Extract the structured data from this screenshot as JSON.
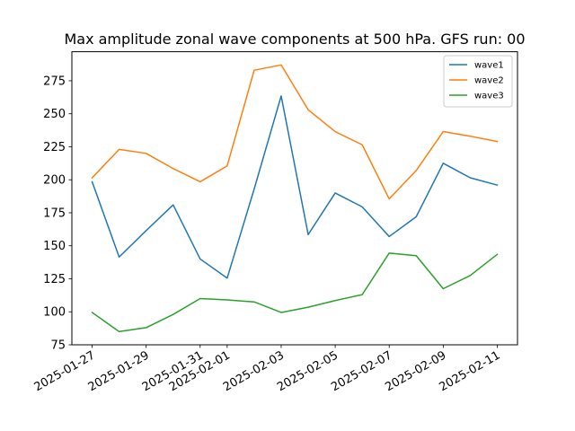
{
  "chart_data": {
    "type": "line",
    "title": "Max amplitude zonal wave components at 500 hPa. GFS run: 00",
    "xlabel": "",
    "ylabel": "",
    "x": [
      "2025-01-27",
      "2025-01-28",
      "2025-01-29",
      "2025-01-30",
      "2025-01-31",
      "2025-02-01",
      "2025-02-02",
      "2025-02-03",
      "2025-02-04",
      "2025-02-05",
      "2025-02-06",
      "2025-02-07",
      "2025-02-08",
      "2025-02-09",
      "2025-02-10",
      "2025-02-11"
    ],
    "xticks": [
      "2025-01-27",
      "2025-01-29",
      "2025-01-31",
      "2025-02-01",
      "2025-02-03",
      "2025-02-05",
      "2025-02-07",
      "2025-02-09",
      "2025-02-11"
    ],
    "ylim": [
      75,
      297
    ],
    "yticks": [
      75,
      100,
      125,
      150,
      175,
      200,
      225,
      250,
      275
    ],
    "legend_position": "top-right",
    "grid": false,
    "series": [
      {
        "name": "wave1",
        "color": "#1f77b4",
        "values": [
          198.5,
          141.5,
          161.5,
          181.0,
          140.0,
          125.5,
          193.0,
          263.5,
          158.5,
          190.0,
          179.5,
          157.0,
          172.0,
          212.5,
          201.5,
          196.0
        ]
      },
      {
        "name": "wave2",
        "color": "#ff7f0e",
        "values": [
          201.5,
          223.0,
          220.0,
          208.5,
          198.5,
          210.5,
          283.0,
          287.0,
          253.0,
          236.5,
          226.5,
          185.5,
          207.0,
          236.5,
          233.0,
          229.0
        ]
      },
      {
        "name": "wave3",
        "color": "#2ca02c",
        "values": [
          99.5,
          85.0,
          88.0,
          98.0,
          110.0,
          109.0,
          107.5,
          99.5,
          103.5,
          108.5,
          113.0,
          144.5,
          142.5,
          117.5,
          127.5,
          143.5
        ]
      }
    ]
  }
}
